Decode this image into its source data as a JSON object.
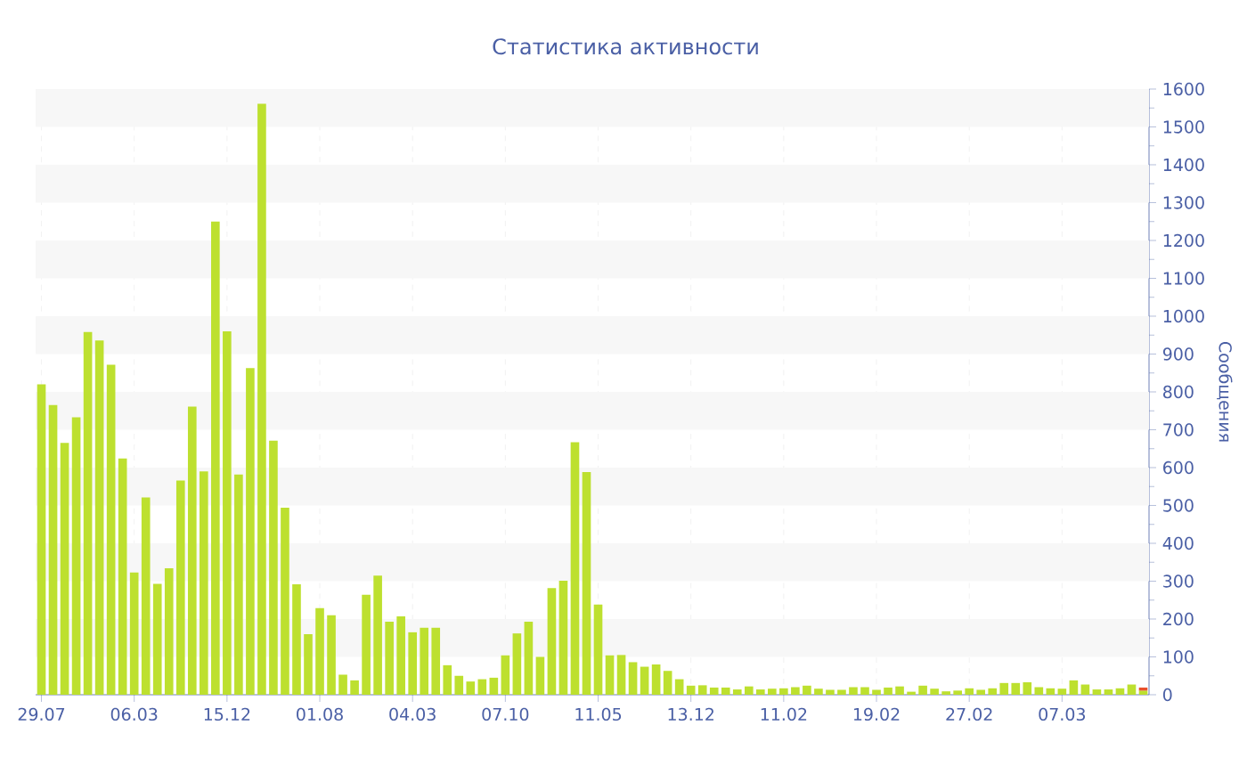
{
  "chart_data": {
    "type": "bar",
    "title": "Статистика активности",
    "ylabel": "Сообщения",
    "categories": [
      "29.07",
      null,
      null,
      null,
      null,
      null,
      null,
      null,
      "06.03",
      null,
      null,
      null,
      null,
      null,
      null,
      null,
      "15.12",
      null,
      null,
      null,
      null,
      null,
      null,
      null,
      "01.08",
      null,
      null,
      null,
      null,
      null,
      null,
      null,
      "04.03",
      null,
      null,
      null,
      null,
      null,
      null,
      null,
      "07.10",
      null,
      null,
      null,
      null,
      null,
      null,
      null,
      "11.05",
      null,
      null,
      null,
      null,
      null,
      null,
      null,
      "13.12",
      null,
      null,
      null,
      null,
      null,
      null,
      null,
      "11.02",
      null,
      null,
      null,
      null,
      null,
      null,
      null,
      "19.02",
      null,
      null,
      null,
      null,
      null,
      null,
      null,
      "27.02",
      null,
      null,
      null,
      null,
      null,
      null,
      null,
      "07.03",
      null,
      null,
      null,
      null,
      null,
      null,
      null
    ],
    "stacked": true,
    "series": [
      {
        "color": "#bde02f",
        "values": [
          820,
          765,
          665,
          733,
          958,
          936,
          872,
          624,
          323,
          521,
          293,
          334,
          566,
          761,
          590,
          1250,
          960,
          582,
          863,
          1561,
          671,
          494,
          292,
          160,
          229,
          210,
          53,
          38,
          264,
          315,
          193,
          207,
          165,
          177,
          177,
          78,
          50,
          35,
          41,
          45,
          104,
          162,
          193,
          100,
          282,
          301,
          667,
          588,
          238,
          104,
          105,
          86,
          74,
          80,
          63,
          41,
          24,
          25,
          19,
          19,
          14,
          22,
          14,
          16,
          17,
          20,
          24,
          16,
          13,
          13,
          20,
          20,
          13,
          19,
          22,
          8,
          24,
          16,
          9,
          11,
          17,
          13,
          17,
          31,
          31,
          33,
          20,
          17,
          16,
          38,
          27,
          14,
          14,
          17,
          27,
          11
        ]
      },
      {
        "color": "#e8502a",
        "values": [
          null,
          null,
          null,
          null,
          null,
          null,
          null,
          null,
          null,
          null,
          null,
          null,
          null,
          null,
          null,
          null,
          null,
          null,
          null,
          null,
          null,
          null,
          null,
          null,
          null,
          null,
          null,
          null,
          null,
          null,
          null,
          null,
          null,
          null,
          null,
          null,
          null,
          null,
          null,
          null,
          null,
          null,
          null,
          null,
          null,
          null,
          null,
          null,
          null,
          null,
          null,
          null,
          null,
          null,
          null,
          null,
          null,
          null,
          null,
          null,
          null,
          null,
          null,
          null,
          null,
          null,
          null,
          null,
          null,
          null,
          null,
          null,
          null,
          null,
          null,
          null,
          null,
          null,
          null,
          null,
          null,
          null,
          null,
          null,
          null,
          null,
          null,
          null,
          null,
          null,
          null,
          null,
          null,
          null,
          null,
          8
        ]
      }
    ],
    "ylim": [
      0,
      1600
    ],
    "yticks": [
      0,
      100,
      200,
      300,
      400,
      500,
      600,
      700,
      800,
      900,
      1000,
      1100,
      1200,
      1300,
      1400,
      1500,
      1600
    ],
    "grid": true
  }
}
